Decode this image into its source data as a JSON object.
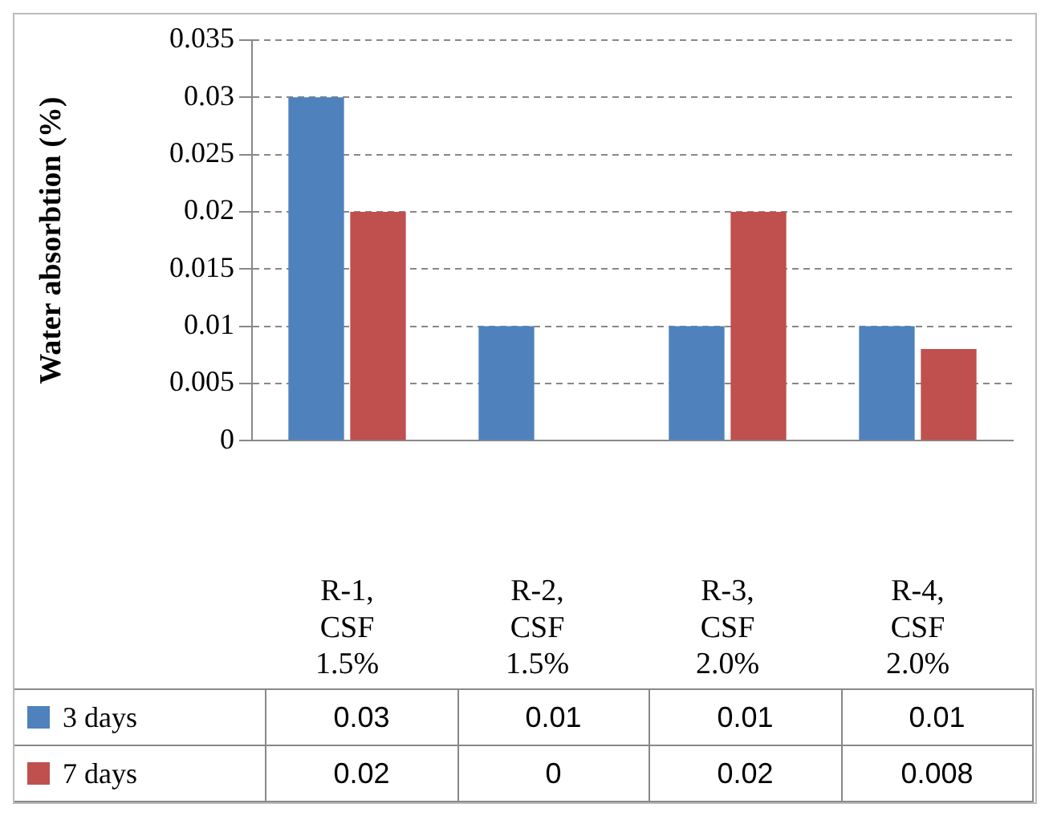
{
  "chart_data": {
    "type": "bar",
    "ylabel": "Water absorbtion (%)",
    "categories": [
      "R-1, CSF 1.5%",
      "R-2, CSF 1.5%",
      "R-3, CSF 2.0%",
      "R-4, CSF 2.0%"
    ],
    "series": [
      {
        "name": "3 days",
        "color": "#4f81bd",
        "values": [
          0.03,
          0.01,
          0.01,
          0.01
        ]
      },
      {
        "name": "7 days",
        "color": "#c0504d",
        "values": [
          0.02,
          0,
          0.02,
          0.008
        ]
      }
    ],
    "ylim": [
      0,
      0.035
    ],
    "yticks": [
      0,
      0.005,
      0.01,
      0.015,
      0.02,
      0.025,
      0.03,
      0.035
    ],
    "grid": "y",
    "legend": "bottom",
    "data_labels": true
  }
}
